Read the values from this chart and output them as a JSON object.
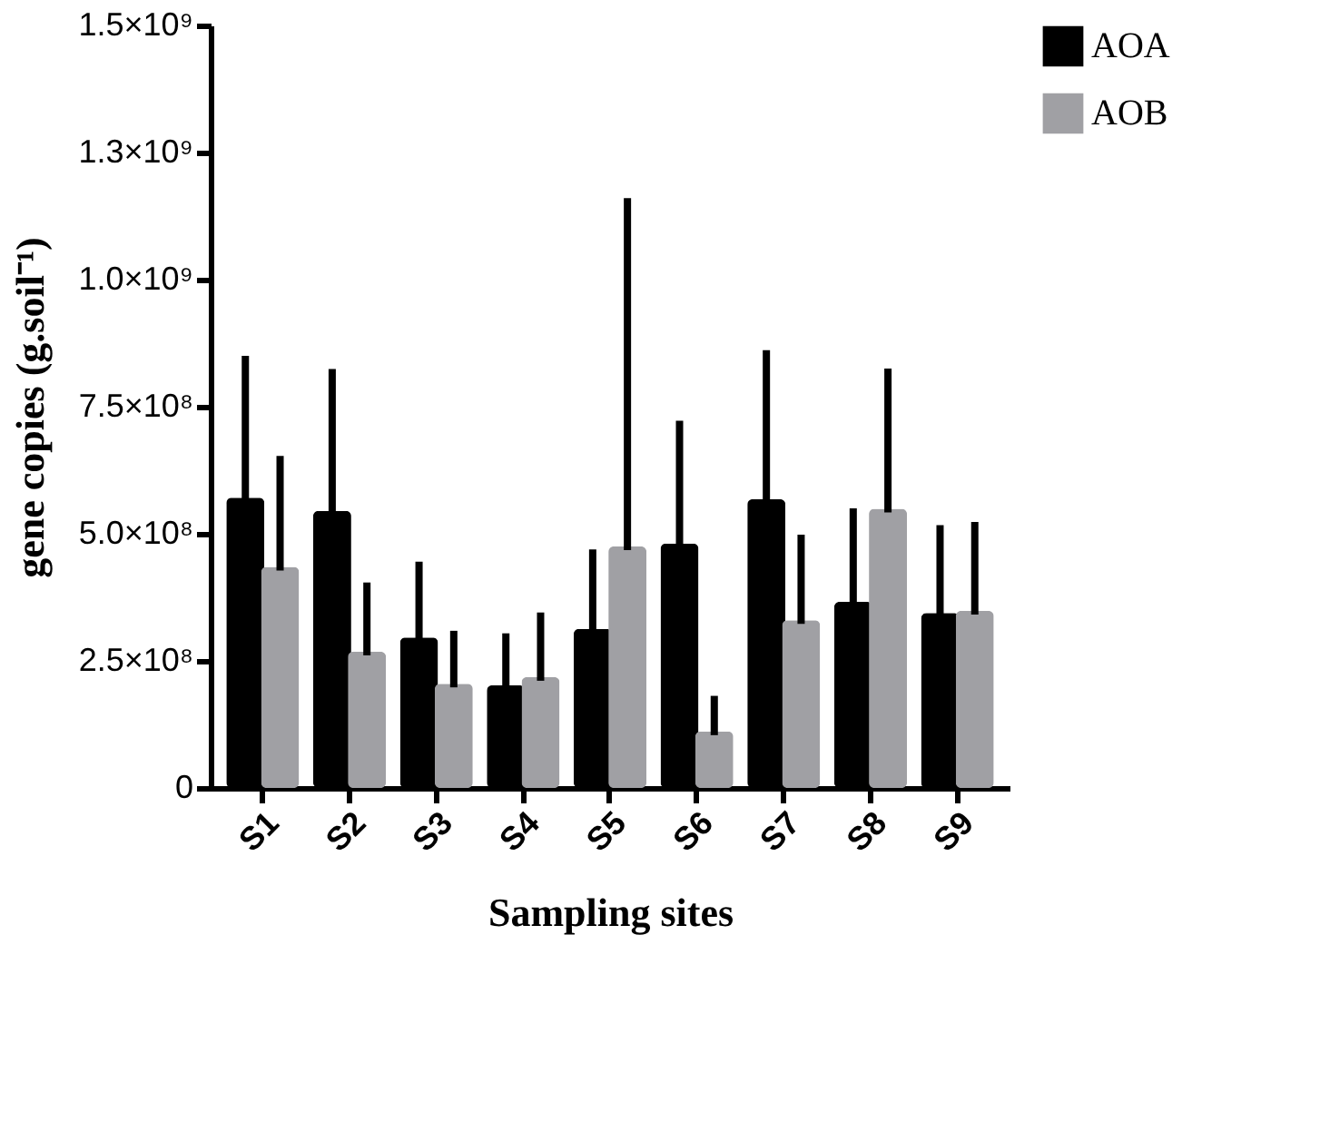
{
  "chart_data": {
    "type": "bar",
    "xlabel": "Sampling sites",
    "ylabel": "gene copies (g.soil⁻¹)",
    "categories": [
      "S1",
      "S2",
      "S3",
      "S4",
      "S5",
      "S6",
      "S7",
      "S8",
      "S9"
    ],
    "series": [
      {
        "name": "AOA",
        "color": "#000000",
        "values": [
          571000000,
          545000000,
          296000000,
          202000000,
          313000000,
          481000000,
          568000000,
          366000000,
          344000000
        ],
        "errors": [
          [
            571000000,
            843000000
          ],
          [
            545000000,
            817000000
          ],
          [
            296000000,
            438000000
          ],
          [
            202000000,
            297000000
          ],
          [
            313000000,
            462000000
          ],
          [
            481000000,
            715000000
          ],
          [
            568000000,
            854000000
          ],
          [
            366000000,
            543000000
          ],
          [
            344000000,
            510000000
          ]
        ]
      },
      {
        "name": "AOB",
        "color": "#a0a0a4",
        "values": [
          435000000,
          268000000,
          205000000,
          218000000,
          475000000,
          111000000,
          330000000,
          549000000,
          348000000
        ],
        "errors": [
          [
            435000000,
            646000000
          ],
          [
            268000000,
            397000000
          ],
          [
            205000000,
            302000000
          ],
          [
            218000000,
            338000000
          ],
          [
            475000000,
            1153000000
          ],
          [
            111000000,
            174000000
          ],
          [
            330000000,
            491000000
          ],
          [
            549000000,
            818000000
          ],
          [
            348000000,
            516000000
          ]
        ]
      }
    ],
    "ylim": [
      0,
      1500000000
    ],
    "yticks": [
      0,
      {
        "value": 250000000,
        "label": "2.5×10⁸"
      },
      {
        "value": 500000000,
        "label": "5.0×10⁸"
      },
      {
        "value": 750000000,
        "label": "7.5×10⁸"
      },
      {
        "value": 1000000000,
        "label": "1.0×10⁹"
      },
      {
        "value": 1250000000,
        "label": "1.3×10⁹"
      },
      {
        "value": 1500000000,
        "label": "1.5×10⁹"
      }
    ],
    "grid": false,
    "legend": "top right"
  }
}
